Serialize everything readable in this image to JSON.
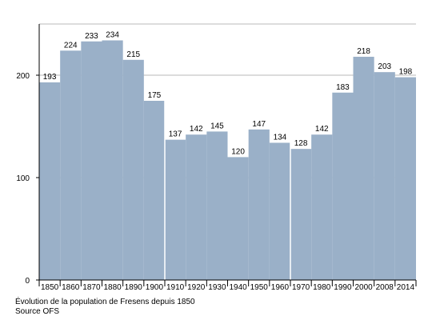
{
  "chart_data": {
    "type": "bar",
    "categories": [
      "1850",
      "1860",
      "1870",
      "1880",
      "1890",
      "1900",
      "1910",
      "1920",
      "1930",
      "1940",
      "1950",
      "1960",
      "1970",
      "1980",
      "1990",
      "2000",
      "2008",
      "2014"
    ],
    "values": [
      193,
      224,
      233,
      234,
      215,
      175,
      137,
      142,
      145,
      120,
      147,
      134,
      128,
      142,
      183,
      218,
      203,
      198
    ],
    "data_labels": [
      "193",
      "224",
      "233",
      "234",
      "215",
      "175",
      "137",
      "142",
      "145",
      "120",
      "147",
      "134",
      "128",
      "142",
      "183",
      "218",
      "203",
      "198"
    ],
    "yticks": [
      0,
      100,
      200
    ],
    "ytick_labels": [
      "0",
      "100",
      "200"
    ],
    "ylim": [
      0,
      250
    ],
    "group_breaks_after": [
      "1900",
      "1960"
    ],
    "grid": "horizontal",
    "bar_color": "#9ab0c8",
    "grid_color": "#b8b8b8",
    "axis_color": "#000000",
    "label_color": "#000000"
  },
  "caption": {
    "line1": "Évolution de la population de Fresens depuis 1850",
    "line2": "Source OFS"
  }
}
